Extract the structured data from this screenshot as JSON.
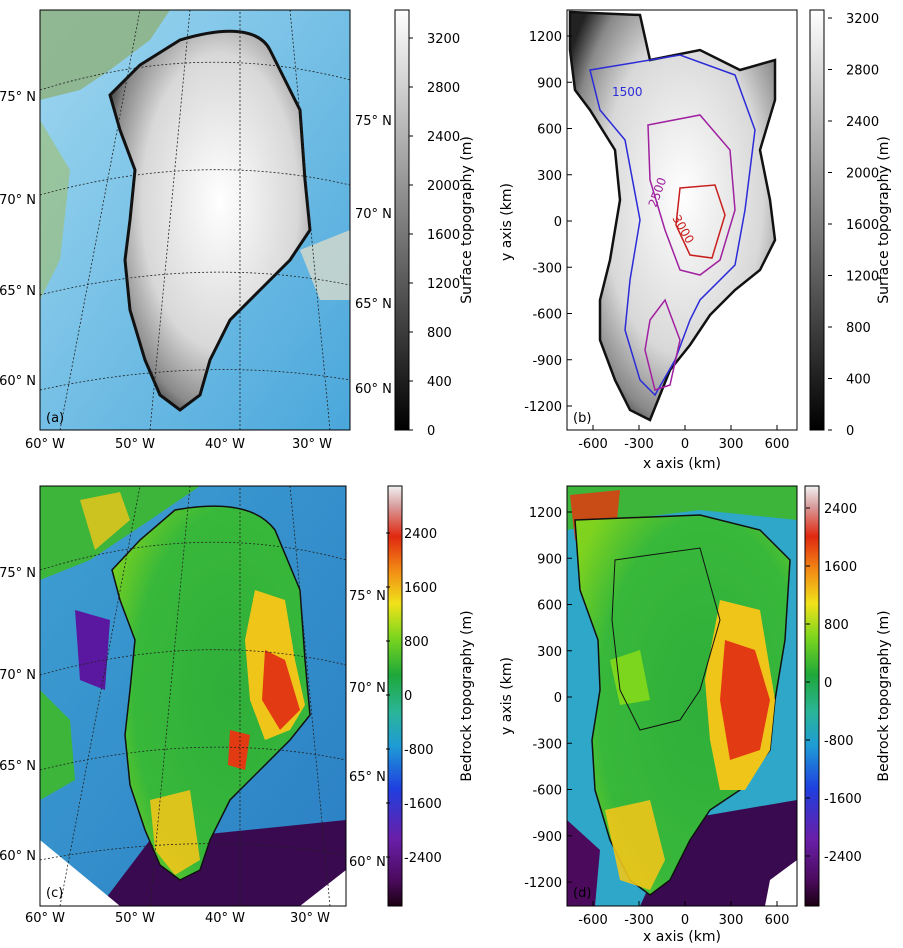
{
  "panels": {
    "a": {
      "label": "(a)",
      "lat_labels": [
        "60° N",
        "65° N",
        "70° N",
        "75° N"
      ],
      "lon_labels": [
        "60° W",
        "50° W",
        "40° W",
        "30° W"
      ],
      "colorbar": {
        "title": "Surface topography (m)",
        "ticks": [
          "0",
          "400",
          "800",
          "1200",
          "1600",
          "2000",
          "2400",
          "2800",
          "3200"
        ],
        "colormap": "grayscale"
      }
    },
    "b": {
      "label": "(b)",
      "xlabel": "x axis (km)",
      "ylabel": "y axis (km)",
      "xticks": [
        "-600",
        "-300",
        "0",
        "300",
        "600"
      ],
      "yticks": [
        "1200",
        "900",
        "600",
        "300",
        "0",
        "-300",
        "-600",
        "-900",
        "-1200"
      ],
      "contours": [
        {
          "label": "1500",
          "color": "#2b2bd8"
        },
        {
          "label": "2500",
          "color": "#a020a0"
        },
        {
          "label": "3000",
          "color": "#c81e1e"
        }
      ],
      "colorbar": {
        "title": "Surface topography (m)",
        "ticks": [
          "0",
          "400",
          "800",
          "1200",
          "1600",
          "2000",
          "2400",
          "2800",
          "3200"
        ],
        "colormap": "grayscale"
      }
    },
    "c": {
      "label": "(c)",
      "lat_labels": [
        "60° N",
        "65° N",
        "70° N",
        "75° N"
      ],
      "lon_labels": [
        "60° W",
        "50° W",
        "40° W",
        "30° W"
      ],
      "colorbar": {
        "title": "Bedrock topography (m)",
        "ticks": [
          "-2400",
          "-1600",
          "-800",
          "0",
          "800",
          "1600",
          "2400"
        ],
        "colormap": "purple-blue-cyan-green-yellow-red-white"
      }
    },
    "d": {
      "label": "(d)",
      "xlabel": "x axis (km)",
      "ylabel": "y axis (km)",
      "xticks": [
        "-600",
        "-300",
        "0",
        "300",
        "600"
      ],
      "yticks": [
        "1200",
        "900",
        "600",
        "300",
        "0",
        "-300",
        "-600",
        "-900",
        "-1200"
      ],
      "colorbar": {
        "title": "Bedrock topography (m)",
        "ticks": [
          "-2400",
          "-1600",
          "-800",
          "0",
          "800",
          "1600",
          "2400"
        ],
        "colormap": "purple-blue-cyan-green-yellow-red-white"
      }
    }
  }
}
